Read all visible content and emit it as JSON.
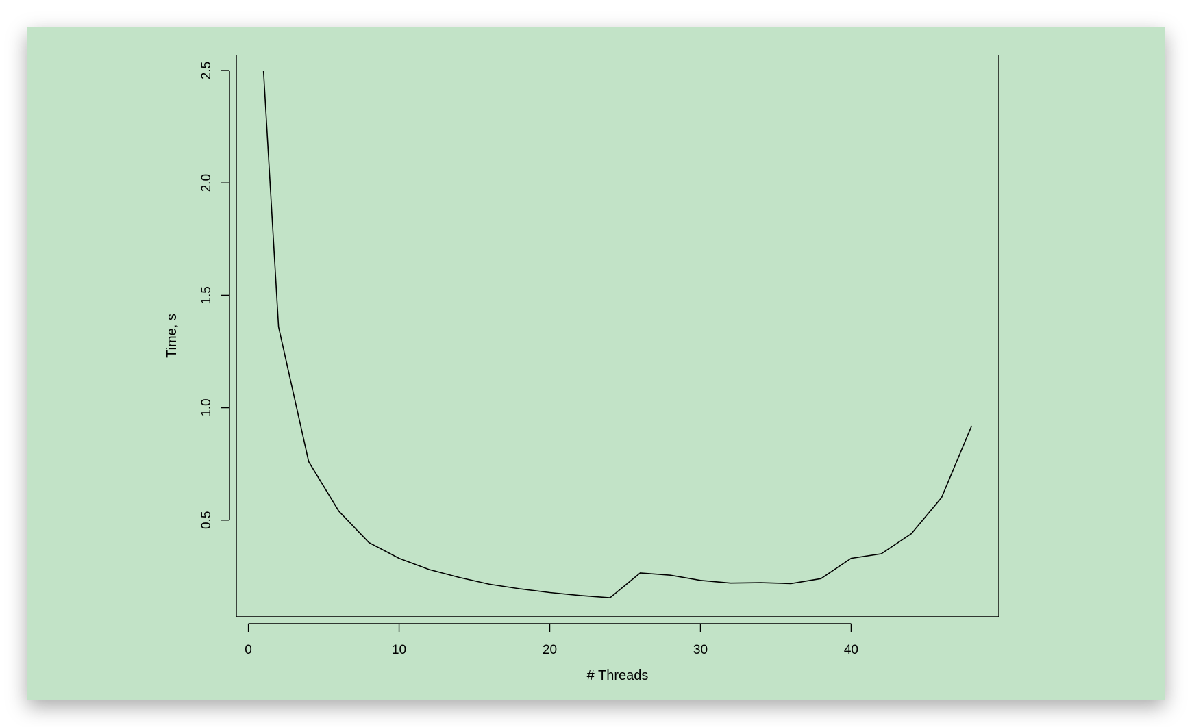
{
  "chart_data": {
    "type": "line",
    "title": "",
    "xlabel": "# Threads",
    "ylabel": "Time, s",
    "xlim": [
      -0.8,
      49.8
    ],
    "ylim": [
      0.07,
      2.57
    ],
    "xticks": [
      0,
      10,
      20,
      30,
      40
    ],
    "yticks": [
      0.5,
      1.0,
      1.5,
      2.0,
      2.5
    ],
    "xtick_labels": [
      "0",
      "10",
      "20",
      "30",
      "40"
    ],
    "ytick_labels": [
      "0.5",
      "1.0",
      "1.5",
      "2.0",
      "2.5"
    ],
    "grid": false,
    "line_color": "#000000",
    "background_color": "#c2e3c7",
    "series": [
      {
        "x": [
          1,
          2,
          4,
          6,
          8,
          10,
          12,
          14,
          16,
          18,
          20,
          22,
          24,
          26,
          28,
          30,
          32,
          34,
          36,
          38,
          40,
          42,
          44,
          46,
          48
        ],
        "y": [
          2.5,
          1.36,
          0.76,
          0.54,
          0.4,
          0.33,
          0.28,
          0.245,
          0.215,
          0.195,
          0.178,
          0.165,
          0.155,
          0.265,
          0.255,
          0.232,
          0.22,
          0.222,
          0.218,
          0.24,
          0.33,
          0.35,
          0.44,
          0.6,
          0.92
        ]
      }
    ]
  }
}
